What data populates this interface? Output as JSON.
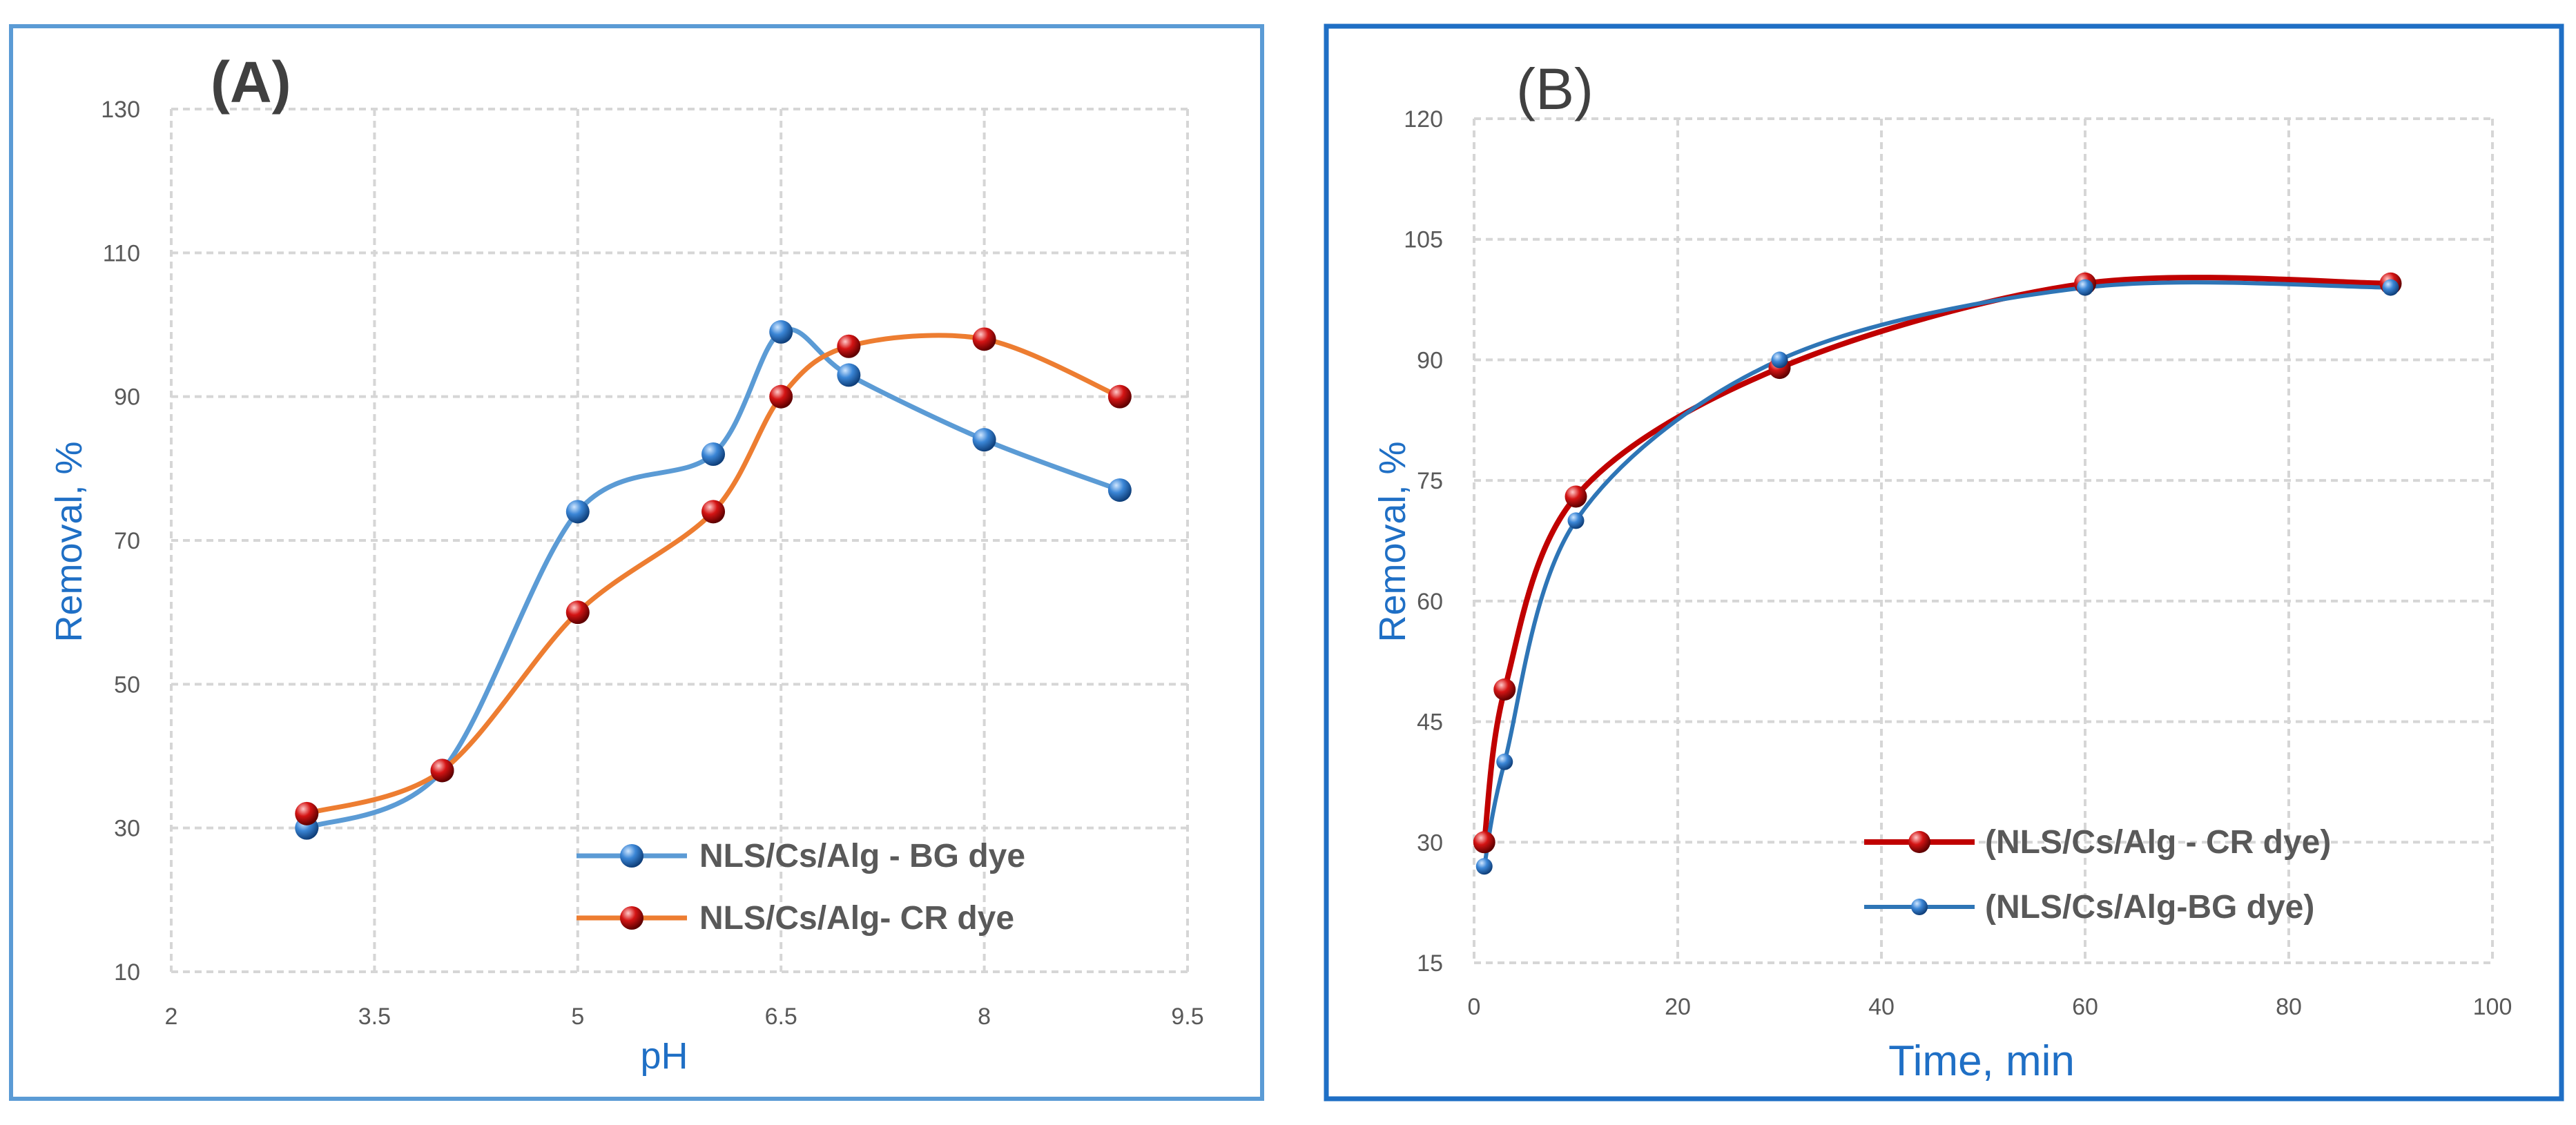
{
  "chart_data": [
    {
      "type": "line",
      "panel_label": "(A)",
      "title": "",
      "xlabel": "pH",
      "ylabel": "Removal, %",
      "xlim": [
        2,
        9.5
      ],
      "ylim": [
        10,
        130
      ],
      "x_ticks": [
        "2",
        "3.5",
        "5",
        "6.5",
        "8",
        "9.5"
      ],
      "y_ticks": [
        "10",
        "30",
        "50",
        "70",
        "90",
        "110",
        "130"
      ],
      "grid": true,
      "legend_position": "bottom-right",
      "series": [
        {
          "name": "NLS/Cs/Alg - BG dye",
          "color": "#5b9bd5",
          "marker_color": "#2e75b6",
          "x": [
            3,
            4,
            5,
            6,
            6.5,
            7,
            8,
            9
          ],
          "y": [
            30,
            38,
            74,
            82,
            99,
            93,
            84,
            77
          ]
        },
        {
          "name": "NLS/Cs/Alg- CR dye",
          "color": "#ed7d31",
          "marker_color": "#c00000",
          "x": [
            3,
            4,
            5,
            6,
            6.5,
            7,
            8,
            9
          ],
          "y": [
            32,
            38,
            60,
            74,
            90,
            97,
            98,
            90
          ]
        }
      ]
    },
    {
      "type": "line",
      "panel_label": "(B)",
      "title": "",
      "xlabel": "Time, min",
      "ylabel": "Removal, %",
      "xlim": [
        0,
        100
      ],
      "ylim": [
        15,
        120
      ],
      "x_ticks": [
        "0",
        "20",
        "40",
        "60",
        "80",
        "100"
      ],
      "y_ticks": [
        "15",
        "30",
        "45",
        "60",
        "75",
        "90",
        "105",
        "120"
      ],
      "grid": true,
      "legend_position": "bottom-right",
      "series": [
        {
          "name": "(NLS/Cs/Alg - CR dye)",
          "color": "#c00000",
          "marker_color": "#c00000",
          "x": [
            1,
            3,
            10,
            30,
            60,
            90
          ],
          "y": [
            30,
            49,
            73,
            89,
            99.5,
            99.5
          ]
        },
        {
          "name": "(NLS/Cs/Alg-BG dye)",
          "color": "#2e75b6",
          "marker_color": "#2e75b6",
          "x": [
            1,
            3,
            10,
            30,
            60,
            90
          ],
          "y": [
            27,
            40,
            70,
            90,
            99,
            99
          ]
        }
      ]
    }
  ]
}
